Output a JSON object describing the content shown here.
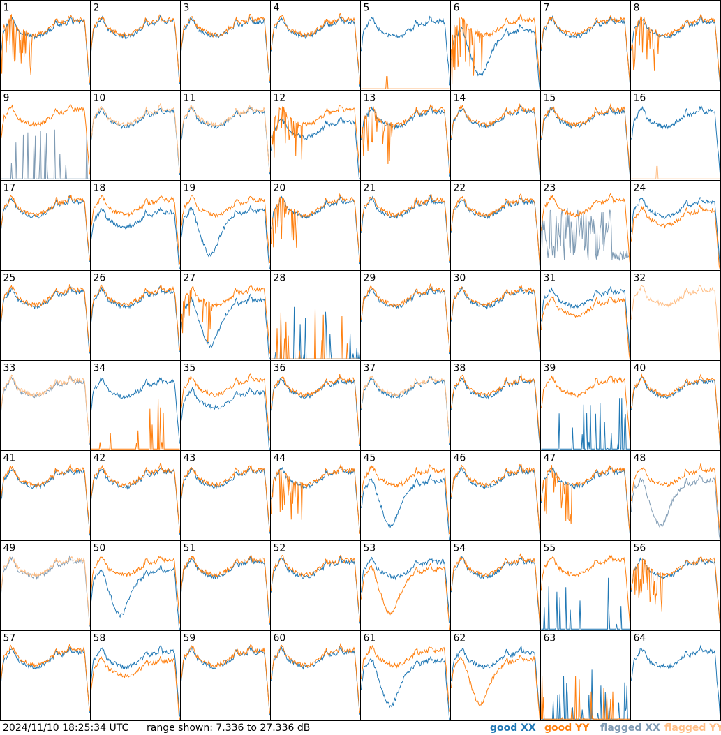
{
  "footer": {
    "timestamp": "2024/11/10 18:25:34 UTC",
    "range_text": "range shown: 7.336 to 27.336 dB"
  },
  "legend": [
    {
      "label": "good XX",
      "color": "#1f77b4"
    },
    {
      "label": "good YY",
      "color": "#ff7f0e"
    },
    {
      "label": "flagged XX",
      "color": "#7f9bb4"
    },
    {
      "label": "flagged YY",
      "color": "#ffbf87"
    }
  ],
  "chart_data": {
    "type": "line",
    "grid": {
      "rows": 8,
      "cols": 8
    },
    "ylim": [
      7.336,
      27.336
    ],
    "yunit": "dB",
    "series_names": [
      "good XX",
      "good YY",
      "flagged XX",
      "flagged YY"
    ],
    "panels": [
      {
        "label": "1",
        "xx": "good",
        "yy": "good",
        "xx_shape": "normal",
        "yy_shape": "spiky"
      },
      {
        "label": "2",
        "xx": "good",
        "yy": "good",
        "xx_shape": "normal",
        "yy_shape": "normal"
      },
      {
        "label": "3",
        "xx": "good",
        "yy": "good",
        "xx_shape": "normal",
        "yy_shape": "normal"
      },
      {
        "label": "4",
        "xx": "good",
        "yy": "good",
        "xx_shape": "normal",
        "yy_shape": "normal"
      },
      {
        "label": "5",
        "xx": "good",
        "yy": "good",
        "xx_shape": "normal",
        "yy_shape": "flat"
      },
      {
        "label": "6",
        "xx": "good",
        "yy": "good",
        "xx_shape": "dip",
        "yy_shape": "spiky"
      },
      {
        "label": "7",
        "xx": "good",
        "yy": "good",
        "xx_shape": "normal",
        "yy_shape": "normal"
      },
      {
        "label": "8",
        "xx": "good",
        "yy": "good",
        "xx_shape": "normal",
        "yy_shape": "spiky"
      },
      {
        "label": "9",
        "xx": "flagged",
        "yy": "good",
        "xx_shape": "sparse",
        "yy_shape": "normal"
      },
      {
        "label": "10",
        "xx": "good",
        "yy": "flagged",
        "xx_shape": "normal",
        "yy_shape": "normal"
      },
      {
        "label": "11",
        "xx": "good",
        "yy": "flagged",
        "xx_shape": "normal",
        "yy_shape": "normal"
      },
      {
        "label": "12",
        "xx": "good",
        "yy": "good",
        "xx_shape": "low",
        "yy_shape": "spiky"
      },
      {
        "label": "13",
        "xx": "good",
        "yy": "good",
        "xx_shape": "normal",
        "yy_shape": "spiky"
      },
      {
        "label": "14",
        "xx": "good",
        "yy": "good",
        "xx_shape": "normal",
        "yy_shape": "normal"
      },
      {
        "label": "15",
        "xx": "good",
        "yy": "good",
        "xx_shape": "normal",
        "yy_shape": "normal"
      },
      {
        "label": "16",
        "xx": "good",
        "yy": "flagged",
        "xx_shape": "normal",
        "yy_shape": "flat"
      },
      {
        "label": "17",
        "xx": "good",
        "yy": "good",
        "xx_shape": "normal",
        "yy_shape": "normal"
      },
      {
        "label": "18",
        "xx": "good",
        "yy": "good",
        "xx_shape": "low",
        "yy_shape": "normal"
      },
      {
        "label": "19",
        "xx": "good",
        "yy": "good",
        "xx_shape": "dip",
        "yy_shape": "normal"
      },
      {
        "label": "20",
        "xx": "good",
        "yy": "good",
        "xx_shape": "normal",
        "yy_shape": "spiky"
      },
      {
        "label": "21",
        "xx": "good",
        "yy": "good",
        "xx_shape": "normal",
        "yy_shape": "normal"
      },
      {
        "label": "22",
        "xx": "good",
        "yy": "good",
        "xx_shape": "normal",
        "yy_shape": "normal"
      },
      {
        "label": "23",
        "xx": "flagged",
        "yy": "good",
        "xx_shape": "noisy",
        "yy_shape": "normal"
      },
      {
        "label": "24",
        "xx": "good",
        "yy": "good",
        "xx_shape": "normal",
        "yy_shape": "low"
      },
      {
        "label": "25",
        "xx": "good",
        "yy": "good",
        "xx_shape": "normal",
        "yy_shape": "normal"
      },
      {
        "label": "26",
        "xx": "good",
        "yy": "good",
        "xx_shape": "normal",
        "yy_shape": "normal"
      },
      {
        "label": "27",
        "xx": "good",
        "yy": "good",
        "xx_shape": "dip",
        "yy_shape": "spiky"
      },
      {
        "label": "28",
        "xx": "good",
        "yy": "good",
        "xx_shape": "sparse",
        "yy_shape": "sparse"
      },
      {
        "label": "29",
        "xx": "good",
        "yy": "good",
        "xx_shape": "normal",
        "yy_shape": "normal"
      },
      {
        "label": "30",
        "xx": "good",
        "yy": "good",
        "xx_shape": "normal",
        "yy_shape": "normal"
      },
      {
        "label": "31",
        "xx": "good",
        "yy": "good",
        "xx_shape": "normal",
        "yy_shape": "low"
      },
      {
        "label": "32",
        "xx": "none",
        "yy": "flagged",
        "xx_shape": "none",
        "yy_shape": "normal"
      },
      {
        "label": "33",
        "xx": "flagged",
        "yy": "flagged",
        "xx_shape": "normal",
        "yy_shape": "normal"
      },
      {
        "label": "34",
        "xx": "good",
        "yy": "good",
        "xx_shape": "normal",
        "yy_shape": "sparse"
      },
      {
        "label": "35",
        "xx": "good",
        "yy": "good",
        "xx_shape": "low",
        "yy_shape": "normal"
      },
      {
        "label": "36",
        "xx": "good",
        "yy": "good",
        "xx_shape": "normal",
        "yy_shape": "normal"
      },
      {
        "label": "37",
        "xx": "good",
        "yy": "flagged",
        "xx_shape": "normal",
        "yy_shape": "normal"
      },
      {
        "label": "38",
        "xx": "good",
        "yy": "good",
        "xx_shape": "normal",
        "yy_shape": "normal"
      },
      {
        "label": "39",
        "xx": "good",
        "yy": "good",
        "xx_shape": "sparse",
        "yy_shape": "normal"
      },
      {
        "label": "40",
        "xx": "good",
        "yy": "good",
        "xx_shape": "normal",
        "yy_shape": "normal"
      },
      {
        "label": "41",
        "xx": "good",
        "yy": "good",
        "xx_shape": "normal",
        "yy_shape": "normal"
      },
      {
        "label": "42",
        "xx": "good",
        "yy": "good",
        "xx_shape": "normal",
        "yy_shape": "normal"
      },
      {
        "label": "43",
        "xx": "good",
        "yy": "good",
        "xx_shape": "normal",
        "yy_shape": "normal"
      },
      {
        "label": "44",
        "xx": "good",
        "yy": "good",
        "xx_shape": "normal",
        "yy_shape": "spiky"
      },
      {
        "label": "45",
        "xx": "good",
        "yy": "good",
        "xx_shape": "dip",
        "yy_shape": "normal"
      },
      {
        "label": "46",
        "xx": "good",
        "yy": "good",
        "xx_shape": "normal",
        "yy_shape": "normal"
      },
      {
        "label": "47",
        "xx": "good",
        "yy": "good",
        "xx_shape": "normal",
        "yy_shape": "spiky"
      },
      {
        "label": "48",
        "xx": "flagged",
        "yy": "good",
        "xx_shape": "dip",
        "yy_shape": "normal"
      },
      {
        "label": "49",
        "xx": "flagged",
        "yy": "flagged",
        "xx_shape": "normal",
        "yy_shape": "normal"
      },
      {
        "label": "50",
        "xx": "good",
        "yy": "good",
        "xx_shape": "dip",
        "yy_shape": "normal"
      },
      {
        "label": "51",
        "xx": "good",
        "yy": "good",
        "xx_shape": "normal",
        "yy_shape": "normal"
      },
      {
        "label": "52",
        "xx": "good",
        "yy": "good",
        "xx_shape": "normal",
        "yy_shape": "normal"
      },
      {
        "label": "53",
        "xx": "good",
        "yy": "good",
        "xx_shape": "normal",
        "yy_shape": "dip"
      },
      {
        "label": "54",
        "xx": "good",
        "yy": "good",
        "xx_shape": "normal",
        "yy_shape": "normal"
      },
      {
        "label": "55",
        "xx": "good",
        "yy": "good",
        "xx_shape": "sparse",
        "yy_shape": "normal"
      },
      {
        "label": "56",
        "xx": "good",
        "yy": "good",
        "xx_shape": "normal",
        "yy_shape": "spiky"
      },
      {
        "label": "57",
        "xx": "good",
        "yy": "good",
        "xx_shape": "normal",
        "yy_shape": "normal"
      },
      {
        "label": "58",
        "xx": "good",
        "yy": "good",
        "xx_shape": "normal",
        "yy_shape": "low"
      },
      {
        "label": "59",
        "xx": "good",
        "yy": "good",
        "xx_shape": "normal",
        "yy_shape": "normal"
      },
      {
        "label": "60",
        "xx": "good",
        "yy": "good",
        "xx_shape": "normal",
        "yy_shape": "normal"
      },
      {
        "label": "61",
        "xx": "good",
        "yy": "good",
        "xx_shape": "dip",
        "yy_shape": "normal"
      },
      {
        "label": "62",
        "xx": "good",
        "yy": "good",
        "xx_shape": "normal",
        "yy_shape": "dip"
      },
      {
        "label": "63",
        "xx": "good",
        "yy": "good",
        "xx_shape": "sparse",
        "yy_shape": "sparse"
      },
      {
        "label": "64",
        "xx": "good",
        "yy": "none",
        "xx_shape": "normal",
        "yy_shape": "none"
      }
    ]
  }
}
